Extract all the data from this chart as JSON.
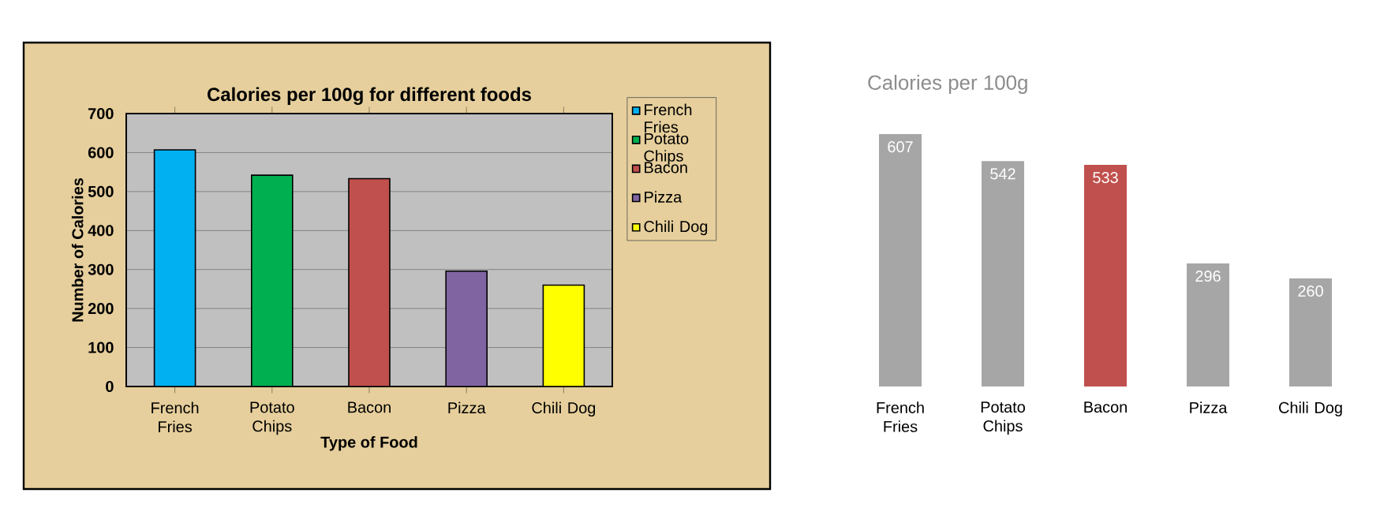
{
  "chart_data": [
    {
      "type": "bar",
      "title": "Calories per 100g for different foods",
      "xlabel": "Type of Food",
      "ylabel": "Number of Calories",
      "categories": [
        "French Fries",
        "Potato Chips",
        "Bacon",
        "Pizza",
        "Chili Dog"
      ],
      "series": [
        {
          "name": "French Fries",
          "color": "#00b0f0",
          "values": [
            607,
            null,
            null,
            null,
            null
          ]
        },
        {
          "name": "Potato Chips",
          "color": "#00b050",
          "values": [
            null,
            542,
            null,
            null,
            null
          ]
        },
        {
          "name": "Bacon",
          "color": "#c0504d",
          "values": [
            null,
            null,
            533,
            null,
            null
          ]
        },
        {
          "name": "Pizza",
          "color": "#8064a2",
          "values": [
            null,
            null,
            null,
            296,
            null
          ]
        },
        {
          "name": "Chili Dog",
          "color": "#ffff00",
          "values": [
            null,
            null,
            null,
            null,
            260
          ]
        }
      ],
      "ylim": [
        0,
        700
      ],
      "yticks": [
        0,
        100,
        200,
        300,
        400,
        500,
        600,
        700
      ],
      "grid": "y",
      "legend": "right"
    },
    {
      "type": "bar",
      "title": "Calories per 100g",
      "categories": [
        "French Fries",
        "Potato Chips",
        "Bacon",
        "Pizza",
        "Chili Dog"
      ],
      "values": [
        607,
        542,
        533,
        296,
        260
      ],
      "colors": [
        "#a6a6a6",
        "#a6a6a6",
        "#c0504d",
        "#a6a6a6",
        "#a6a6a6"
      ],
      "data_labels": true
    }
  ]
}
